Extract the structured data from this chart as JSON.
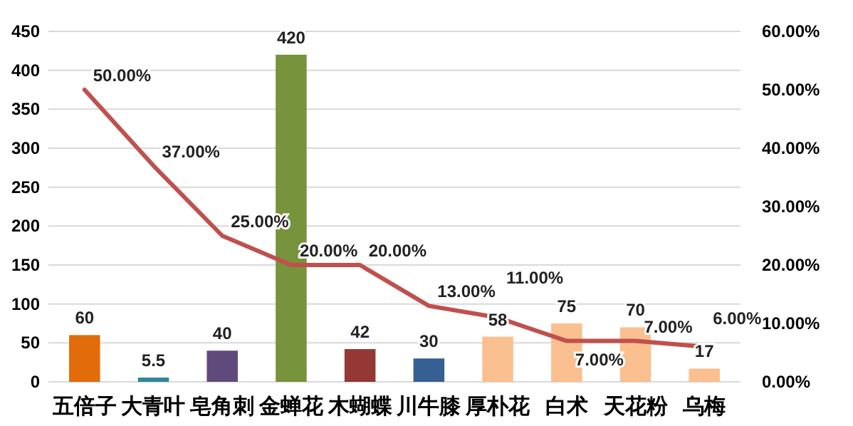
{
  "chart_data": {
    "type": "bar",
    "categories": [
      "五倍子",
      "大青叶",
      "皂角刺",
      "金蝉花",
      "木蝴蝶",
      "川牛膝",
      "厚朴花",
      "白术",
      "天花粉",
      "乌梅"
    ],
    "series": [
      {
        "colors": [
          "#e36c0a",
          "#31859c",
          "#604a7b",
          "#77933c",
          "#953735",
          "#376092",
          "#fac090",
          "#fac090",
          "#fac090",
          "#fac090"
        ],
        "values": [
          60,
          5.5,
          40,
          420,
          42,
          30,
          58,
          75,
          70,
          17
        ],
        "value_labels": [
          "60",
          "5.5",
          "40",
          "420",
          "42",
          "30",
          "58",
          "75",
          "70",
          "17"
        ]
      },
      {
        "type": "line",
        "axis": "y2",
        "color": "#c0504d",
        "values": [
          50,
          37,
          25,
          20,
          20,
          13,
          11,
          7,
          7,
          6
        ],
        "value_labels": [
          "50.00%",
          "37.00%",
          "25.00%",
          "20.00%",
          "20.00%",
          "13.00%",
          "11.00%",
          "7.00%",
          "7.00%",
          "6.00%"
        ]
      }
    ],
    "ylim": [
      0,
      450
    ],
    "yticks": [
      0,
      50,
      100,
      150,
      200,
      250,
      300,
      350,
      400,
      450
    ],
    "y2lim": [
      0,
      60
    ],
    "y2ticks": [
      {
        "value": 0,
        "label": "0.00%"
      },
      {
        "value": 10,
        "label": "10.00%"
      },
      {
        "value": 20,
        "label": "20.00%"
      },
      {
        "value": 30,
        "label": "30.00%"
      },
      {
        "value": 40,
        "label": "40.00%"
      },
      {
        "value": 50,
        "label": "50.00%"
      },
      {
        "value": 60,
        "label": "60.00%"
      }
    ],
    "grid": "y"
  }
}
